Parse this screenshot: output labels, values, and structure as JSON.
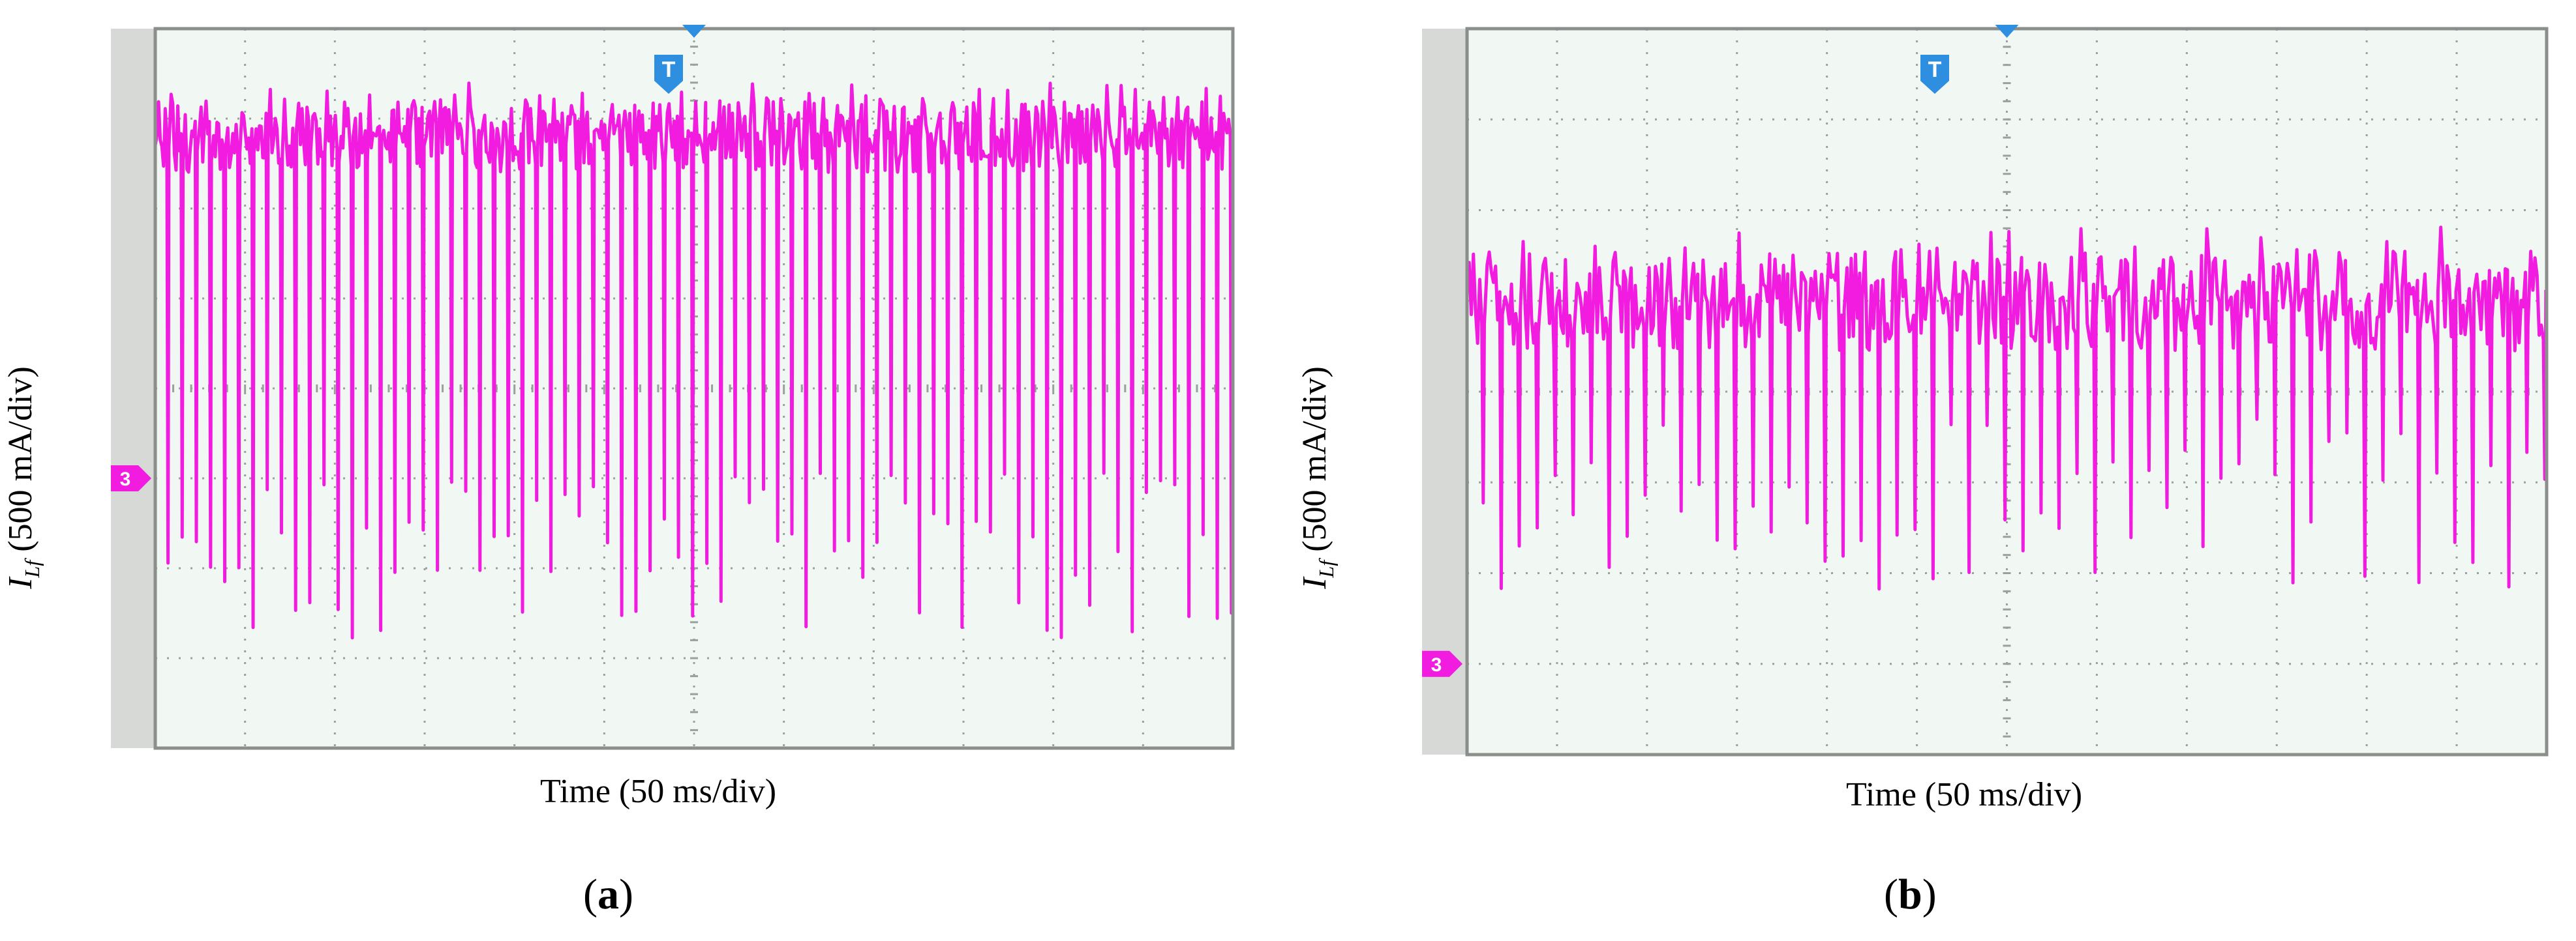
{
  "chart_data": [
    {
      "type": "line",
      "panel_label": "a",
      "xlabel": "Time (50 ms/div)",
      "ylabel_symbol": "I",
      "ylabel_subscript": "Lf",
      "ylabel_unit": "(500 mA/div)",
      "x_divisions": 12,
      "y_divisions": 8,
      "grid": true,
      "trigger_marker": "T",
      "channel_marker": "3",
      "channel_ground_div": 5,
      "waveform_color": "#f21ce0",
      "series": [
        {
          "pulse_count": 76,
          "baseline_div": 1.2,
          "baseline_noise_div": 0.4,
          "dip_level_div": [
            4.9,
            6.8
          ],
          "start_div": 1.3
        }
      ]
    },
    {
      "type": "line",
      "panel_label": "b",
      "xlabel": "Time (50 ms/div)",
      "ylabel_symbol": "I",
      "ylabel_subscript": "Lf",
      "ylabel_unit": "(500 mA/div)",
      "x_divisions": 12,
      "y_divisions": 8,
      "grid": true,
      "trigger_marker": "T",
      "channel_marker": "3",
      "channel_ground_div": 7,
      "waveform_color": "#f21ce0",
      "series": [
        {
          "pulse_count": 60,
          "baseline_div": 3.0,
          "baseline_noise_div": 0.55,
          "dip_level_div": [
            4.3,
            6.2
          ],
          "start_div": 2.9
        }
      ]
    }
  ],
  "colors": {
    "screen_bg": "#f1f7f2",
    "side_strip": "#d6d9d6",
    "grid": "#9aa09c",
    "frame": "#8a8f8b",
    "marker_blue": "#2e8fe0",
    "marker_magenta": "#f21ce0"
  }
}
